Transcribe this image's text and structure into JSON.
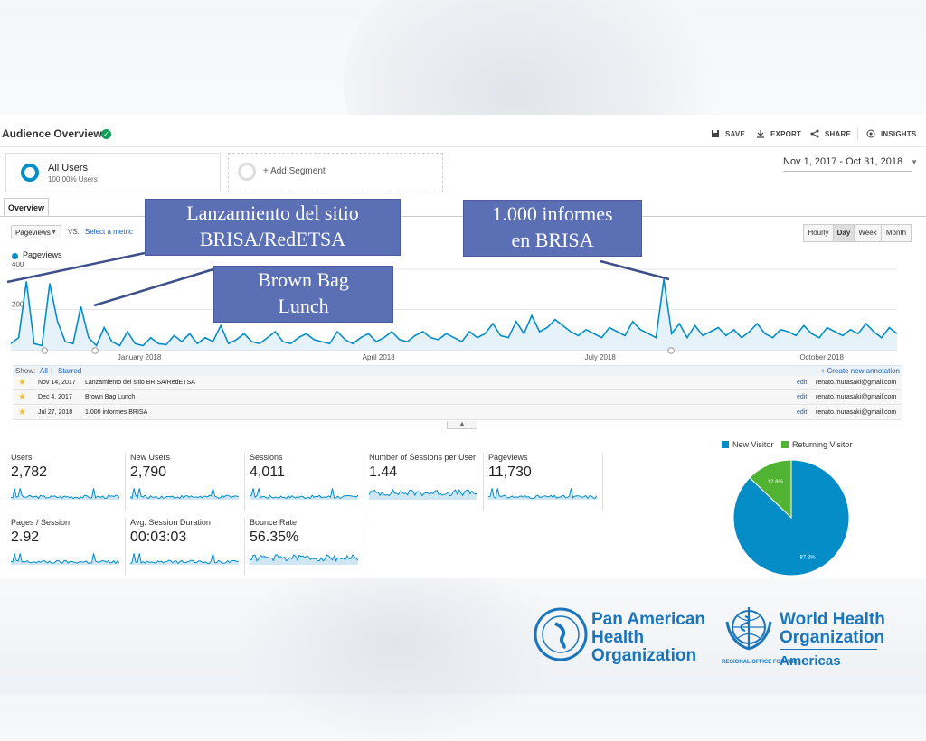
{
  "header": {
    "title": "Audience Overview",
    "toolbar": [
      {
        "label": "SAVE",
        "icon": "save-icon"
      },
      {
        "label": "EXPORT",
        "icon": "export-icon"
      },
      {
        "label": "SHARE",
        "icon": "share-icon"
      },
      {
        "label": "INSIGHTS",
        "icon": "insights-icon"
      }
    ]
  },
  "segments": {
    "active_name": "All Users",
    "active_pct": "100.00% Users",
    "add_label": "+ Add Segment"
  },
  "date_range": "Nov 1, 2017 - Oct 31, 2018",
  "tabs": {
    "overview": "Overview"
  },
  "controls": {
    "metric_select": "Pageviews",
    "vs": "VS.",
    "select_metric": "Select a metric",
    "granularity": [
      "Hourly",
      "Day",
      "Week",
      "Month"
    ],
    "selected_granularity": "Day"
  },
  "callouts": {
    "launch": [
      "Lanzamiento del sitio",
      "BRISA/RedETSA"
    ],
    "brownbag": [
      "Brown Bag",
      "Lunch"
    ],
    "reports": [
      "1.000 informes",
      "en BRISA"
    ]
  },
  "annotations": {
    "show_label": "Show:",
    "all": "All",
    "starred": "Starred",
    "create": "+ Create new annotation",
    "rows": [
      {
        "date": "Nov 14, 2017",
        "text": "Lanzamiento del sitio BRISA/RedETSA",
        "edit": "edit",
        "email": "renato.murasaki@gmail.com"
      },
      {
        "date": "Dec 4, 2017",
        "text": "Brown Bag Lunch",
        "edit": "edit",
        "email": "renato.murasaki@gmail.com"
      },
      {
        "date": "Jul 27, 2018",
        "text": "1.000 informes BRISA",
        "edit": "edit",
        "email": "renato.murasaki@gmail.com"
      }
    ]
  },
  "metrics": [
    {
      "label": "Users",
      "value": "2,782"
    },
    {
      "label": "New Users",
      "value": "2,790"
    },
    {
      "label": "Sessions",
      "value": "4,011"
    },
    {
      "label": "Number of Sessions per User",
      "value": "1.44"
    },
    {
      "label": "Pageviews",
      "value": "11,730"
    },
    {
      "label": "Pages / Session",
      "value": "2.92"
    },
    {
      "label": "Avg. Session Duration",
      "value": "00:03:03"
    },
    {
      "label": "Bounce Rate",
      "value": "56.35%"
    }
  ],
  "logos": {
    "paho_lines": [
      "Pan American",
      "Health",
      "Organization"
    ],
    "who_lines": [
      "World Health",
      "Organization"
    ],
    "who_sub": "REGIONAL OFFICE FOR THE",
    "who_americas": "Americas"
  },
  "chart_data": [
    {
      "type": "line",
      "title": "",
      "series": [
        {
          "name": "Pageviews",
          "color": "#058dc7",
          "values": [
            30,
            60,
            340,
            30,
            20,
            330,
            140,
            40,
            30,
            215,
            60,
            20,
            110,
            40,
            20,
            90,
            30,
            20,
            60,
            30,
            25,
            70,
            40,
            80,
            30,
            60,
            40,
            120,
            30,
            50,
            80,
            40,
            30,
            60,
            90,
            40,
            30,
            60,
            80,
            50,
            40,
            30,
            90,
            50,
            30,
            60,
            80,
            40,
            60,
            90,
            50,
            40,
            70,
            90,
            60,
            50,
            80,
            60,
            40,
            90,
            60,
            80,
            130,
            70,
            60,
            140,
            80,
            170,
            90,
            110,
            150,
            120,
            90,
            70,
            100,
            80,
            60,
            110,
            90,
            70,
            140,
            100,
            80,
            60,
            350,
            80,
            130,
            60,
            120,
            70,
            90,
            110,
            70,
            100,
            60,
            90,
            130,
            80,
            60,
            100,
            90,
            70,
            120,
            80,
            60,
            110,
            90,
            70,
            100,
            80,
            130,
            90,
            60,
            110,
            80
          ]
        }
      ],
      "x_tick_labels": [
        "January 2018",
        "April 2018",
        "July 2018",
        "October 2018"
      ],
      "y_tick_labels": [
        "400",
        "200"
      ],
      "ylim": [
        0,
        400
      ],
      "annotation_markers": [
        "Nov 14, 2017",
        "Dec 4, 2017",
        "Jul 27, 2018"
      ]
    },
    {
      "type": "pie",
      "legend": [
        "New Visitor",
        "Returning Visitor"
      ],
      "values": [
        87.2,
        12.8
      ],
      "labels": [
        "87.2%",
        "12.8%"
      ],
      "colors": [
        "#058dc7",
        "#50b432"
      ]
    }
  ]
}
